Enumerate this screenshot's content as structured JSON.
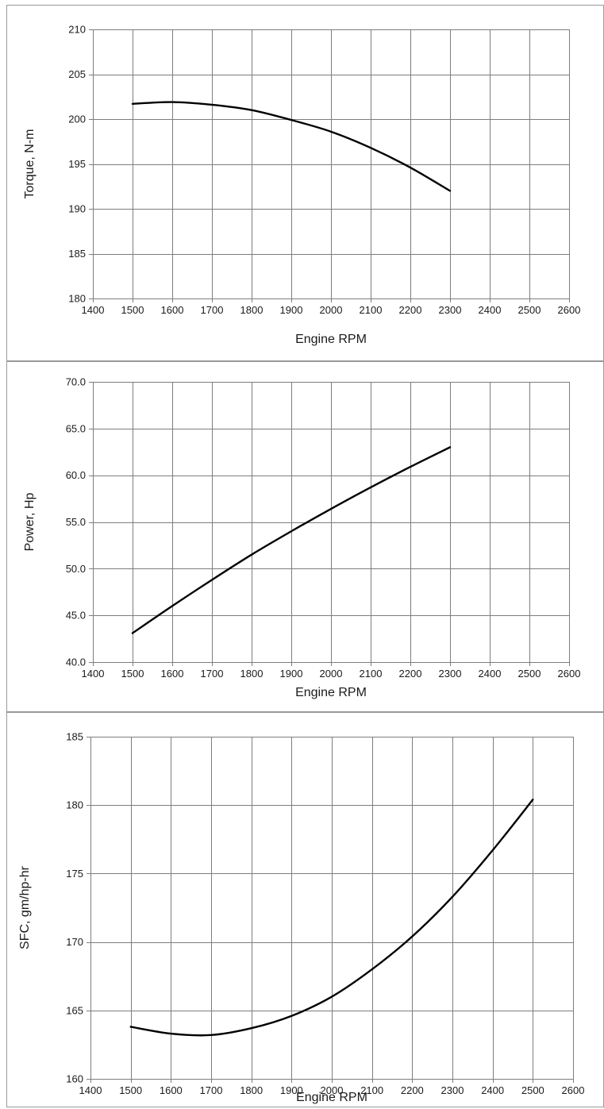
{
  "chart_data": [
    {
      "type": "line",
      "xlabel": "Engine RPM",
      "ylabel": "Torque, N-m",
      "xlim": [
        1400,
        2600
      ],
      "ylim": [
        180,
        210
      ],
      "xticks": [
        1400,
        1500,
        1600,
        1700,
        1800,
        1900,
        2000,
        2100,
        2200,
        2300,
        2400,
        2500,
        2600
      ],
      "yticks": [
        180,
        185,
        190,
        195,
        200,
        205,
        210
      ],
      "ytick_decimals": 0,
      "grid": true,
      "series": [
        {
          "x": [
            1500,
            1600,
            1700,
            1800,
            1900,
            2000,
            2100,
            2200,
            2300
          ],
          "y": [
            201.7,
            201.9,
            201.6,
            201.0,
            199.9,
            198.6,
            196.8,
            194.6,
            192.0
          ]
        }
      ]
    },
    {
      "type": "line",
      "xlabel": "Engine RPM",
      "ylabel": "Power, Hp",
      "xlim": [
        1400,
        2600
      ],
      "ylim": [
        40,
        70
      ],
      "xticks": [
        1400,
        1500,
        1600,
        1700,
        1800,
        1900,
        2000,
        2100,
        2200,
        2300,
        2400,
        2500,
        2600
      ],
      "yticks": [
        40,
        45,
        50,
        55,
        60,
        65,
        70
      ],
      "ytick_decimals": 1,
      "grid": true,
      "series": [
        {
          "x": [
            1500,
            1600,
            1700,
            1800,
            1900,
            2000,
            2100,
            2200,
            2300
          ],
          "y": [
            43.1,
            46.0,
            48.8,
            51.5,
            54.0,
            56.4,
            58.7,
            60.9,
            63.0
          ]
        }
      ]
    },
    {
      "type": "line",
      "xlabel": "Engine RPM",
      "ylabel": "SFC, gm/hp-hr",
      "xlim": [
        1400,
        2600
      ],
      "ylim": [
        160,
        185
      ],
      "xticks": [
        1400,
        1500,
        1600,
        1700,
        1800,
        1900,
        2000,
        2100,
        2200,
        2300,
        2400,
        2500,
        2600
      ],
      "yticks": [
        160,
        165,
        170,
        175,
        180,
        185
      ],
      "ytick_decimals": 0,
      "grid": true,
      "series": [
        {
          "x": [
            1500,
            1600,
            1700,
            1800,
            1900,
            2000,
            2100,
            2200,
            2300,
            2400,
            2500
          ],
          "y": [
            163.8,
            163.3,
            163.2,
            163.7,
            164.6,
            166.0,
            168.0,
            170.4,
            173.3,
            176.7,
            180.4
          ]
        }
      ]
    }
  ]
}
